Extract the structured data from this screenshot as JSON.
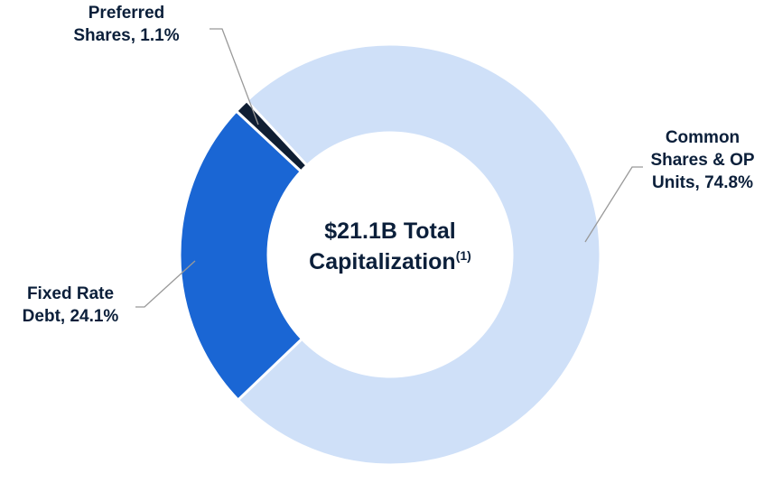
{
  "chart_data": {
    "type": "donut",
    "series": [
      {
        "name": "Common Shares & OP Units",
        "color": "#cfe0f8",
        "values": [
          74.8
        ]
      },
      {
        "name": "Fixed Rate Debt",
        "color": "#1a66d4",
        "values": [
          24.1
        ]
      },
      {
        "name": "Preferred Shares",
        "color": "#0f1e33",
        "values": [
          1.1
        ]
      }
    ],
    "value_labels": [
      [
        "Common",
        "Shares & OP",
        "Units, 74.8%"
      ],
      [
        "Fixed Rate",
        "Debt, 24.1%"
      ],
      [
        "Preferred",
        "Shares, 1.1%"
      ]
    ],
    "center_text": [
      "$21.1B Total",
      "Capitalization"
    ],
    "center_note": "(1)"
  }
}
